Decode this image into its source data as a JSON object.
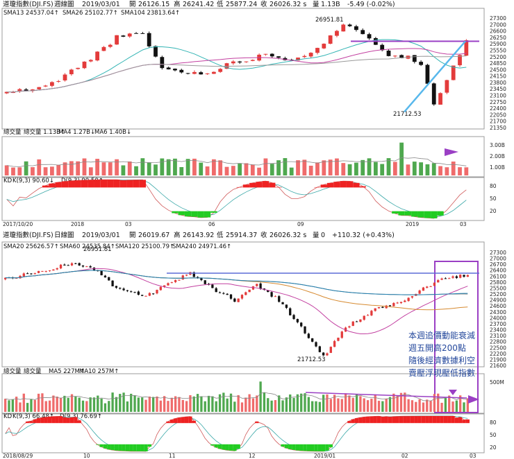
{
  "colors": {
    "up": "#e33b3b",
    "down": "#111111",
    "volUp": "#ef6b6b",
    "volDown": "#4fa84f",
    "accent": "#9a3fc4",
    "trend": "#58b8ec",
    "sma1": "#32b4b4",
    "sma2": "#c23fa0",
    "sma3": "#999999",
    "hl": "#5c6bd6"
  },
  "weekly": {
    "header": {
      "name": "道瓊指數(DJI.FS)",
      "period": "週線圖",
      "date": "2019/03/01",
      "open_l": "開",
      "open": "26126.15",
      "high_l": "高",
      "high": "26241.42",
      "low_l": "低",
      "low": "25877.24",
      "close_l": "收",
      "close": "26026.32 s",
      "vol_l": "量",
      "vol": "1.13B",
      "chg": "-5.49 (-0.02%)"
    },
    "ma_legend": {
      "a": "SMA13 24537.04↑",
      "b": "SMA26 25102.77↑",
      "c": "SMA104 23813.64↑"
    },
    "vol_legend": {
      "a": "總交量",
      "b": "總交量 1.13B↑",
      "c": "MA4 1.27B↓",
      "d": "MA6 1.40B↓"
    },
    "kd_legend": {
      "a": "KD",
      "b": "K(9,3) 90.60↓",
      "c": "D(9,3) 90.50↑"
    },
    "peak_label": "26951.81",
    "low_label": "21712.53",
    "y_ticks": [
      "27300",
      "27000",
      "26600",
      "26250",
      "25900",
      "25550",
      "25200",
      "24850",
      "24500",
      "24150",
      "23800",
      "23450",
      "23100",
      "22750",
      "22400",
      "22050",
      "21700",
      "21350"
    ],
    "vol_ticks": [
      "3.00B",
      "2.00B",
      "1.00B"
    ],
    "kd_ticks": [
      "80",
      "50",
      "20"
    ],
    "x_labels": [
      "2017/10/20",
      "2018",
      "03",
      "06",
      "09",
      "2019",
      "03"
    ]
  },
  "daily": {
    "header": {
      "name": "道瓊指數(DJI.FS)",
      "period": "日線圖",
      "date": "2019/03/01",
      "open_l": "開",
      "open": "26019.67",
      "high_l": "高",
      "high": "26143.92",
      "low_l": "低",
      "low": "25914.37",
      "close_l": "收",
      "close": "26026.32 s",
      "vol_l": "量",
      "vol": "0",
      "chg": "+110.32 (+0.43%)"
    },
    "ma_legend": {
      "a": "SMA20 25626.57↑",
      "b": "SMA60 24535.84↑",
      "c": "SMA120 25100.79↑",
      "d": "SMA240 24971.46↑"
    },
    "vol_legend": {
      "a": "總交量",
      "b": "總交量",
      "c": "MA5 227M↑",
      "d": "MA10 257M↑"
    },
    "kd_legend": {
      "a": "KD",
      "b": "K(9,3) 66.48↑",
      "c": "D(9,3) 76.69↑"
    },
    "peak_label": "26951.81",
    "low_label": "21712.53",
    "note": [
      "本週追價動能衰減",
      "週五開高200點",
      "隨後經濟數據利空",
      "賣壓浮現壓低指數"
    ],
    "y_ticks": [
      "27300",
      "27000",
      "26700",
      "26400",
      "26100",
      "25800",
      "25500",
      "25200",
      "24900",
      "24600",
      "24300",
      "24000",
      "23700",
      "23400",
      "23100",
      "22800",
      "22500",
      "22200",
      "21900",
      "21600"
    ],
    "vol_ticks": [
      "500M"
    ],
    "kd_ticks": [
      "80",
      "50",
      "20"
    ],
    "x_labels": [
      "2018/08/29",
      "10",
      "11",
      "12",
      "2019/01",
      "02",
      "03"
    ]
  }
}
